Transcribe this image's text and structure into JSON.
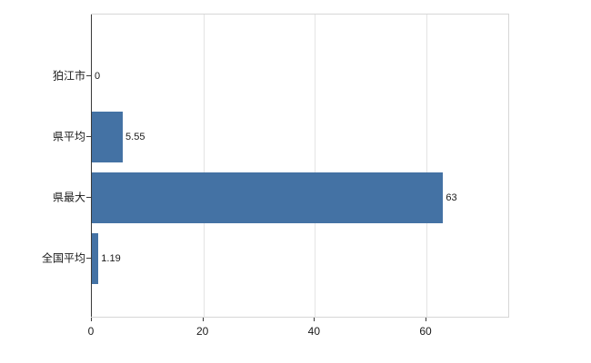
{
  "chart_data": {
    "type": "bar",
    "orientation": "horizontal",
    "title": "",
    "xlabel": "",
    "ylabel": "",
    "categories": [
      "狛江市",
      "県平均",
      "県最大",
      "全国平均"
    ],
    "values": [
      0,
      5.55,
      63,
      1.19
    ],
    "value_labels": [
      "0",
      "5.55",
      "63",
      "1.19"
    ],
    "xticks": [
      0,
      20,
      40,
      60
    ],
    "xlim": [
      0,
      75
    ],
    "grid": true,
    "legend": false,
    "colors": {
      "bar": "#4472a4",
      "axis": "#3a3a3a",
      "gridline": "#e4e4e4",
      "plot_border": "#d6d6d6",
      "text": "#1a1a1a",
      "background": "#ffffff"
    }
  }
}
